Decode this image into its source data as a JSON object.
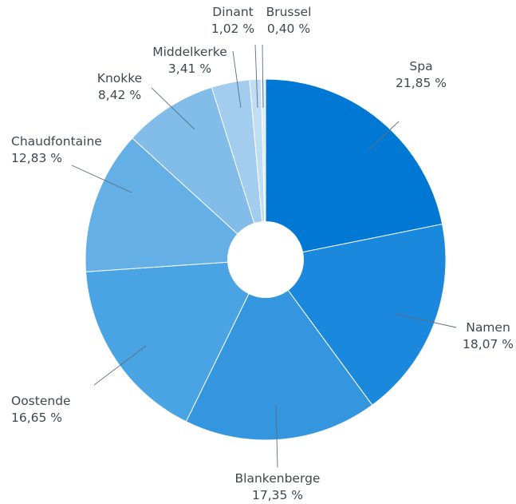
{
  "chart_data": {
    "type": "pie",
    "donut": true,
    "categories": [
      "Spa",
      "Namen",
      "Blankenberge",
      "Oostende",
      "Chaudfontaine",
      "Knokke",
      "Middelkerke",
      "Dinant",
      "Brussel"
    ],
    "values": [
      21.85,
      18.07,
      17.35,
      16.65,
      12.83,
      8.42,
      3.41,
      1.02,
      0.4
    ],
    "value_labels": [
      "21,85 %",
      "18,07 %",
      "17,35 %",
      "16,65 %",
      "12,83 %",
      "8,42 %",
      "3,41 %",
      "1,02 %",
      "0,40 %"
    ],
    "colors": [
      "#0078d4",
      "#1a88dc",
      "#3496de",
      "#4aa3e2",
      "#64b0e6",
      "#82bde9",
      "#a2cdef",
      "#c0ddf4",
      "#dcecf9"
    ],
    "start_angle": "12 o'clock, clockwise",
    "legend": "none",
    "title": ""
  }
}
